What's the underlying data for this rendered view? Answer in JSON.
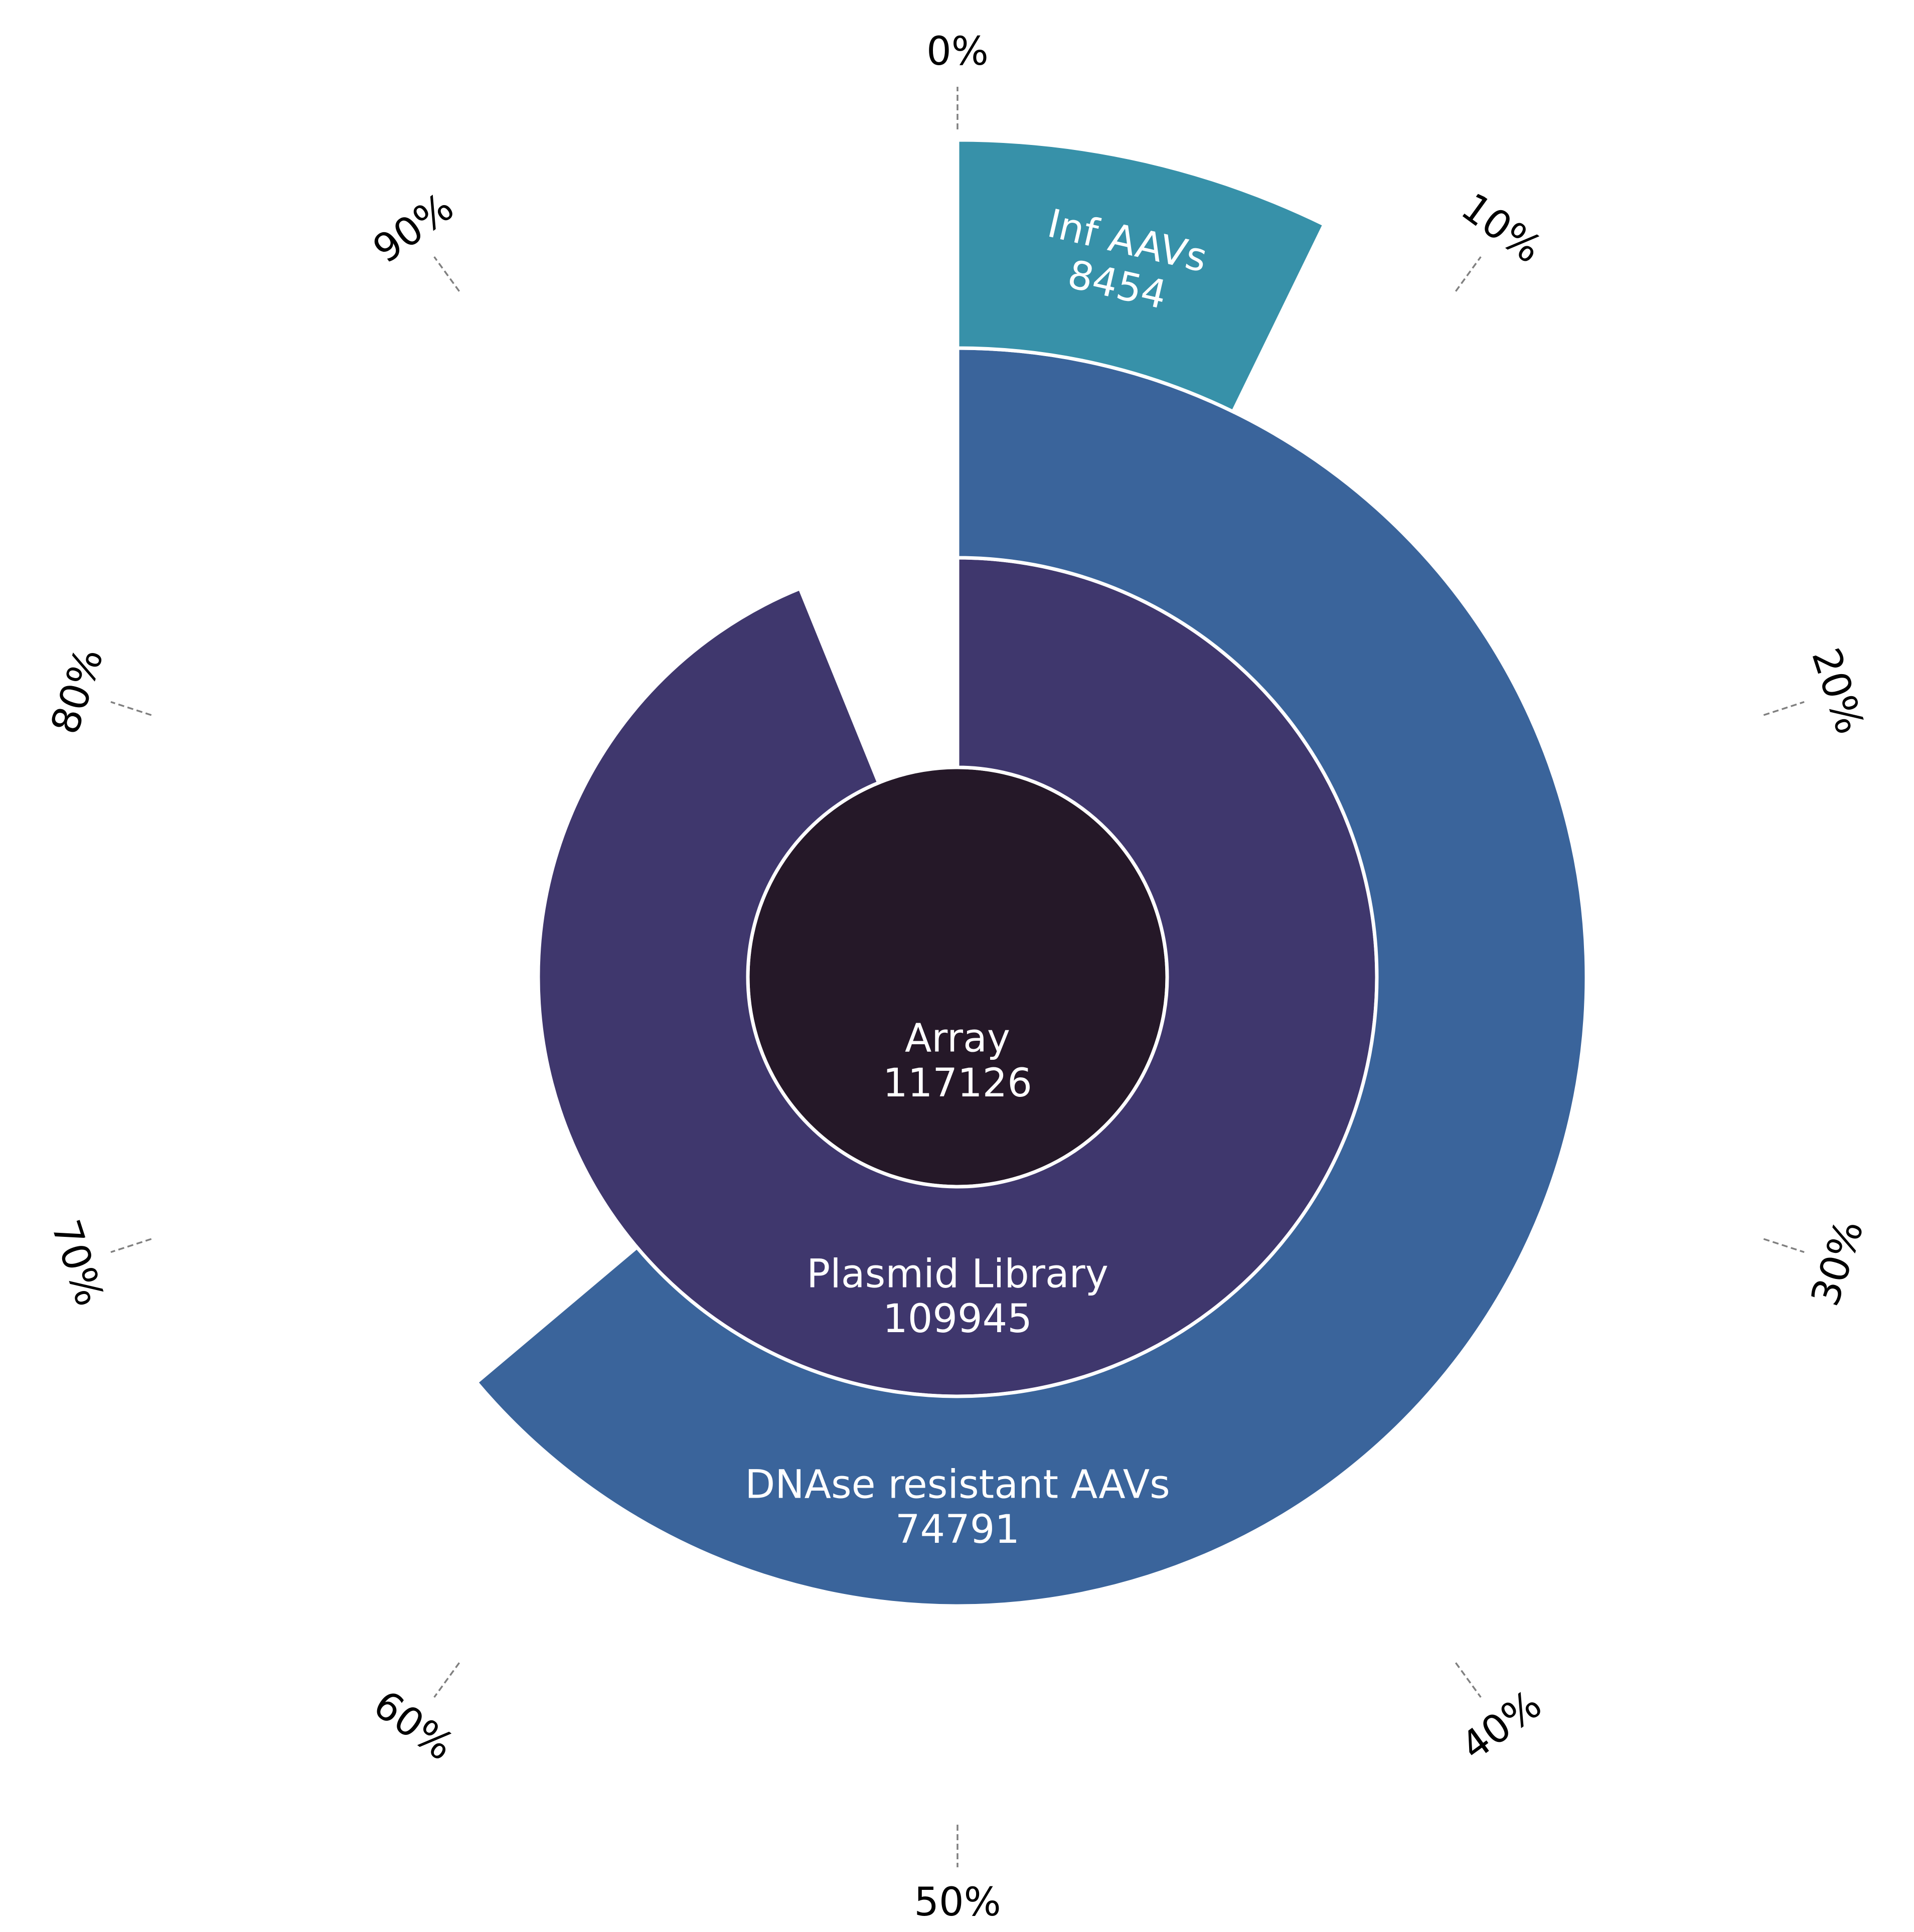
{
  "chart_data": {
    "type": "radial_bar",
    "scale_max": 117126,
    "percent_ticks": [
      "0%",
      "10%",
      "20%",
      "30%",
      "40%",
      "50%",
      "60%",
      "70%",
      "80%",
      "90%"
    ],
    "series": [
      {
        "name": "Array",
        "value": 117126,
        "color": "#251828"
      },
      {
        "name": "Plasmid Library",
        "value": 109945,
        "color": "#3f376d"
      },
      {
        "name": "DNAse resistant AAVs",
        "value": 74791,
        "color": "#3a649b"
      },
      {
        "name": "Inf AAVs",
        "value": 8454,
        "color": "#3791a9"
      }
    ]
  }
}
